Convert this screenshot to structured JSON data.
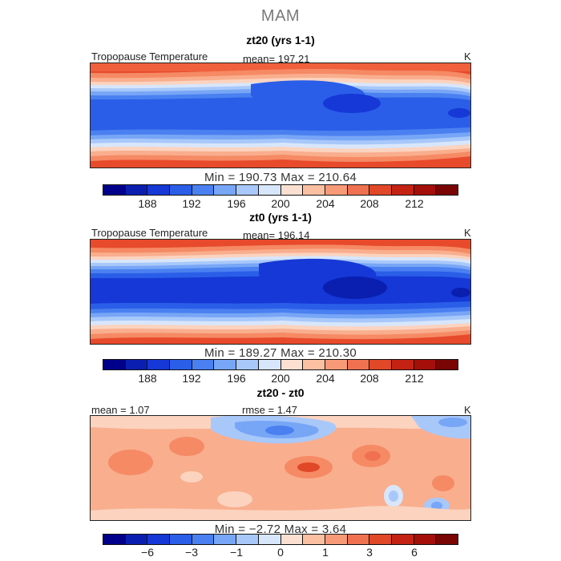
{
  "figure_title": "MAM",
  "panels": [
    {
      "title": "zt20 (yrs 1-1)",
      "left_label": "Tropopause Temperature",
      "center_label": "mean= 197.21",
      "unit": "K",
      "min_max": "Min = 190.73 Max = 210.64",
      "colorbar_ticks": [
        "188",
        "192",
        "196",
        "200",
        "204",
        "208",
        "212"
      ]
    },
    {
      "title": "zt0 (yrs 1-1)",
      "left_label": "Tropopause Temperature",
      "center_label": "mean= 196.14",
      "unit": "K",
      "min_max": "Min = 189.27 Max = 210.30",
      "colorbar_ticks": [
        "188",
        "192",
        "196",
        "200",
        "204",
        "208",
        "212"
      ]
    },
    {
      "title": "zt20 - zt0",
      "left_label": "mean = 1.07",
      "center_label": "rmse = 1.47",
      "unit": "K",
      "min_max": "Min = −2.72 Max = 3.64",
      "colorbar_ticks": [
        "−6",
        "−3",
        "−1",
        "0",
        "1",
        "3",
        "6"
      ]
    }
  ],
  "colormap": [
    "#00008b",
    "#0a1fb0",
    "#1538d6",
    "#2a5ee8",
    "#4a80f0",
    "#78a6f6",
    "#a8c8fa",
    "#d8e6fb",
    "#fbe0d2",
    "#fbbfa2",
    "#f79a78",
    "#ef7150",
    "#e04828",
    "#c42314",
    "#a50f0a",
    "#7a0505"
  ]
}
